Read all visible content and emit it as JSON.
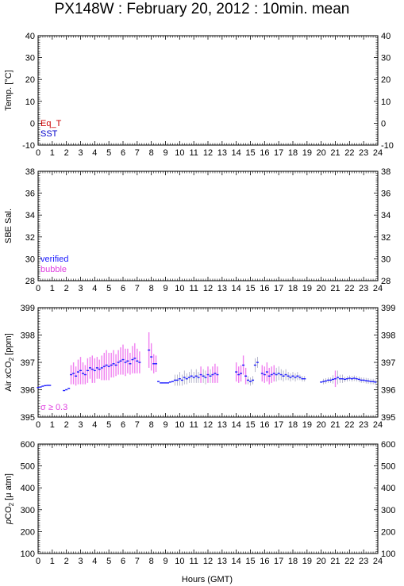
{
  "title": "PX148W : February 20, 2012 : 10min. mean",
  "xlabel": "Hours (GMT)",
  "colors": {
    "sst": "#0000cc",
    "eq_t": "#cc0000",
    "verified": "#1a1aff",
    "bubble": "#e040e0",
    "sigma_bar": "#f080f0"
  },
  "chart_data": [
    {
      "type": "line",
      "ylabel": "Temp. [°C]",
      "xlim": [
        0,
        24
      ],
      "ylim": [
        -10,
        40
      ],
      "yticks": [
        -10,
        0,
        10,
        20,
        30,
        40
      ],
      "legend_placement": "bottom-left",
      "legend": [
        {
          "name": "Eq_T",
          "color": "#cc0000"
        },
        {
          "name": "SST",
          "color": "#0000cc"
        }
      ],
      "series": []
    },
    {
      "type": "scatter",
      "ylabel": "SBE Sal.",
      "xlim": [
        0,
        24
      ],
      "ylim": [
        28,
        38
      ],
      "yticks": [
        28,
        30,
        32,
        34,
        36,
        38
      ],
      "legend_placement": "bottom-left",
      "legend": [
        {
          "name": "verified",
          "color": "#1a1aff"
        },
        {
          "name": "bubble",
          "color": "#e040e0"
        }
      ],
      "series": []
    },
    {
      "type": "scatter",
      "ylabel_main": "Air xCO",
      "ylabel_sub": "2",
      "ylabel_tail": " [ppm]",
      "xlim": [
        0,
        24
      ],
      "ylim": [
        395,
        399
      ],
      "yticks": [
        395,
        396,
        397,
        398,
        399
      ],
      "legend_placement": "bottom-left",
      "annotation": "σ ≥ 0.3",
      "series": [
        {
          "color": "#1a1aff",
          "errorbar_color": "#f080f0",
          "points": [
            [
              0.0,
              396.08,
              0
            ],
            [
              0.17,
              396.1,
              0
            ],
            [
              0.33,
              396.13,
              0
            ],
            [
              0.5,
              396.15,
              0
            ],
            [
              0.67,
              396.16,
              0
            ],
            [
              0.83,
              396.16,
              0
            ],
            [
              1.83,
              395.97,
              0
            ],
            [
              2.0,
              396.0,
              0
            ],
            [
              2.17,
              396.05,
              0
            ],
            [
              2.33,
              396.55,
              0.35
            ],
            [
              2.5,
              396.6,
              0.4
            ],
            [
              2.67,
              396.5,
              0.35
            ],
            [
              2.83,
              396.65,
              0.45
            ],
            [
              3.0,
              396.7,
              0.5
            ],
            [
              3.17,
              396.6,
              0.4
            ],
            [
              3.33,
              396.55,
              0.35
            ],
            [
              3.5,
              396.7,
              0.45
            ],
            [
              3.67,
              396.8,
              0.4
            ],
            [
              3.83,
              396.75,
              0.5
            ],
            [
              4.0,
              396.7,
              0.45
            ],
            [
              4.17,
              396.8,
              0.4
            ],
            [
              4.33,
              396.75,
              0.35
            ],
            [
              4.5,
              396.8,
              0.45
            ],
            [
              4.67,
              396.85,
              0.5
            ],
            [
              4.83,
              396.9,
              0.55
            ],
            [
              5.0,
              396.85,
              0.5
            ],
            [
              5.17,
              396.9,
              0.45
            ],
            [
              5.33,
              396.95,
              0.5
            ],
            [
              5.5,
              396.9,
              0.4
            ],
            [
              5.67,
              397.0,
              0.45
            ],
            [
              5.83,
              397.05,
              0.5
            ],
            [
              6.0,
              397.1,
              0.55
            ],
            [
              6.17,
              397.0,
              0.5
            ],
            [
              6.33,
              397.05,
              0.45
            ],
            [
              6.5,
              396.95,
              0.4
            ],
            [
              6.67,
              397.1,
              0.5
            ],
            [
              6.83,
              397.15,
              0.55
            ],
            [
              7.0,
              397.05,
              0.45
            ],
            [
              7.17,
              397.0,
              0.4
            ],
            [
              7.83,
              397.45,
              0.65
            ],
            [
              8.0,
              397.2,
              0.5
            ],
            [
              8.17,
              396.95,
              0.35
            ],
            [
              8.33,
              396.95,
              0.3
            ],
            [
              8.5,
              396.3,
              0
            ],
            [
              8.67,
              396.25,
              0
            ],
            [
              8.83,
              396.25,
              0
            ],
            [
              9.0,
              396.25,
              0
            ],
            [
              9.17,
              396.25,
              0
            ],
            [
              9.33,
              396.28,
              0
            ],
            [
              9.5,
              396.3,
              0
            ],
            [
              9.67,
              396.35,
              0.2
            ],
            [
              9.83,
              396.35,
              0.2
            ],
            [
              10.0,
              396.4,
              0.25
            ],
            [
              10.17,
              396.35,
              0.2
            ],
            [
              10.33,
              396.45,
              0.25
            ],
            [
              10.5,
              396.4,
              0.2
            ],
            [
              10.67,
              396.45,
              0.2
            ],
            [
              10.83,
              396.5,
              0.25
            ],
            [
              11.0,
              396.45,
              0.2
            ],
            [
              11.17,
              396.5,
              0.25
            ],
            [
              11.33,
              396.45,
              0.2
            ],
            [
              11.5,
              396.55,
              0.3
            ],
            [
              11.67,
              396.5,
              0.25
            ],
            [
              11.83,
              396.45,
              0.25
            ],
            [
              12.0,
              396.55,
              0.3
            ],
            [
              12.17,
              396.5,
              0.25
            ],
            [
              12.33,
              396.55,
              0.3
            ],
            [
              12.5,
              396.6,
              0.35
            ],
            [
              12.67,
              396.55,
              0.3
            ],
            [
              14.0,
              396.65,
              0.35
            ],
            [
              14.17,
              396.55,
              0.3
            ],
            [
              14.33,
              396.6,
              0.3
            ],
            [
              14.5,
              396.9,
              0.35
            ],
            [
              14.67,
              396.5,
              0.3
            ],
            [
              14.83,
              396.35,
              0.15
            ],
            [
              15.0,
              396.3,
              0.15
            ],
            [
              15.17,
              396.35,
              0.15
            ],
            [
              15.33,
              396.9,
              0.25
            ],
            [
              15.5,
              397.0,
              0.2
            ],
            [
              15.83,
              396.6,
              0.3
            ],
            [
              16.0,
              396.55,
              0.3
            ],
            [
              16.17,
              396.65,
              0.35
            ],
            [
              16.33,
              396.5,
              0.3
            ],
            [
              16.5,
              396.55,
              0.3
            ],
            [
              16.67,
              396.6,
              0.3
            ],
            [
              16.83,
              396.55,
              0.25
            ],
            [
              17.0,
              396.6,
              0.25
            ],
            [
              17.17,
              396.55,
              0.2
            ],
            [
              17.33,
              396.5,
              0.2
            ],
            [
              17.5,
              396.55,
              0.2
            ],
            [
              17.67,
              396.5,
              0.15
            ],
            [
              17.83,
              396.45,
              0.15
            ],
            [
              18.0,
              396.5,
              0.15
            ],
            [
              18.17,
              396.45,
              0.15
            ],
            [
              18.33,
              396.5,
              0.15
            ],
            [
              18.5,
              396.45,
              0.1
            ],
            [
              18.67,
              396.4,
              0.1
            ],
            [
              18.83,
              396.4,
              0.1
            ],
            [
              20.0,
              396.28,
              0
            ],
            [
              20.17,
              396.3,
              0.1
            ],
            [
              20.33,
              396.32,
              0.1
            ],
            [
              20.5,
              396.35,
              0.1
            ],
            [
              20.67,
              396.35,
              0.1
            ],
            [
              20.83,
              396.38,
              0.15
            ],
            [
              21.0,
              396.4,
              0.3
            ],
            [
              21.17,
              396.45,
              0.25
            ],
            [
              21.33,
              396.4,
              0.15
            ],
            [
              21.5,
              396.4,
              0.15
            ],
            [
              21.67,
              396.38,
              0.1
            ],
            [
              21.83,
              396.4,
              0.1
            ],
            [
              22.0,
              396.42,
              0.1
            ],
            [
              22.17,
              396.4,
              0.1
            ],
            [
              22.33,
              396.42,
              0.1
            ],
            [
              22.5,
              396.4,
              0.1
            ],
            [
              22.67,
              396.38,
              0.1
            ],
            [
              22.83,
              396.35,
              0.1
            ],
            [
              23.0,
              396.35,
              0.1
            ],
            [
              23.17,
              396.33,
              0.1
            ],
            [
              23.33,
              396.32,
              0.1
            ],
            [
              23.5,
              396.3,
              0.1
            ],
            [
              23.67,
              396.3,
              0.1
            ],
            [
              23.83,
              396.28,
              0.1
            ]
          ]
        }
      ]
    },
    {
      "type": "scatter",
      "ylabel_pre": "p",
      "ylabel_main": "CO",
      "ylabel_sub": "2",
      "ylabel_tail": " [μ atm]",
      "xlim": [
        0,
        24
      ],
      "ylim": [
        100,
        600
      ],
      "yticks": [
        100,
        200,
        300,
        400,
        500,
        600
      ],
      "series": []
    }
  ],
  "xticks": [
    0,
    1,
    2,
    3,
    4,
    5,
    6,
    7,
    8,
    9,
    10,
    11,
    12,
    13,
    14,
    15,
    16,
    17,
    18,
    19,
    20,
    21,
    22,
    23,
    24
  ]
}
